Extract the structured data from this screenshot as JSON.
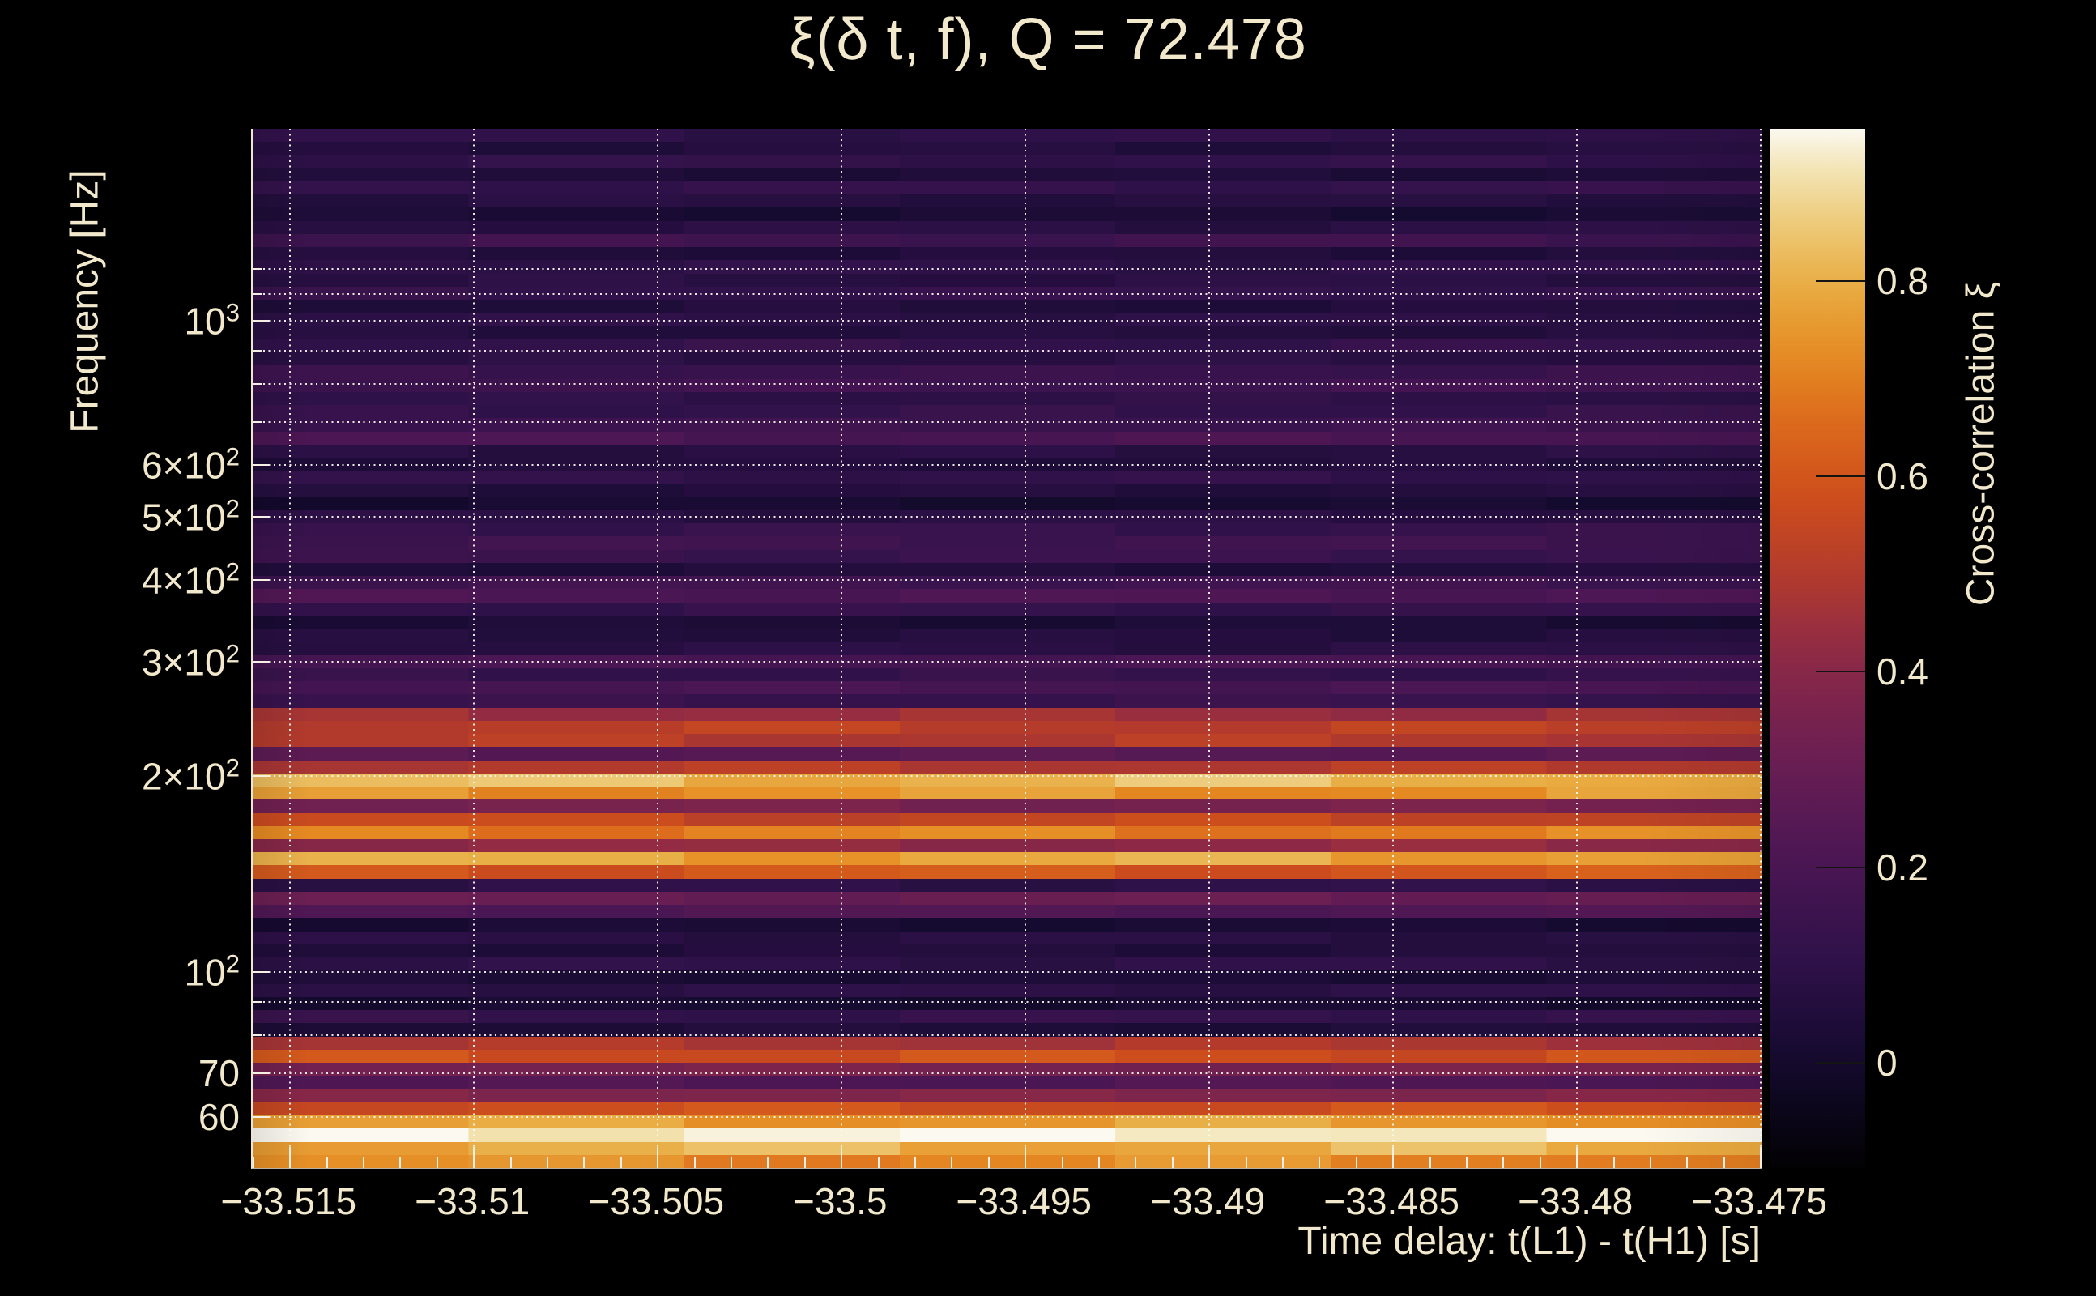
{
  "title": "ξ(δ t, f), Q = 72.478",
  "x_axis": {
    "title": "Time delay: t(L1) - t(H1) [s]",
    "tick_labels": [
      "−33.515",
      "−33.51",
      "−33.505",
      "−33.5",
      "−33.495",
      "−33.49",
      "−33.485",
      "−33.48",
      "−33.475"
    ]
  },
  "y_axis": {
    "title": "Frequency [Hz]",
    "tick_labels": [
      "10³",
      "6×10²",
      "5×10²",
      "4×10²",
      "3×10²",
      "2×10²",
      "10²",
      "70",
      "60"
    ]
  },
  "colorbar": {
    "title": "Cross-correlation ξ",
    "tick_labels": [
      "0.8",
      "0.6",
      "0.4",
      "0.2",
      "0"
    ]
  },
  "colors": {
    "background": "#000000",
    "text": "#f2e8cc",
    "grid": "#fdf9f0",
    "axis_line": "#ece5d2",
    "colorbar_tick": "#141414"
  },
  "chart_data": {
    "type": "heatmap",
    "title": "ξ(δ t, f), Q = 72.478",
    "q_value": 72.478,
    "xlabel": "Time delay: t(L1) - t(H1) [s]",
    "ylabel": "Frequency [Hz]",
    "zlabel": "Cross-correlation ξ",
    "x_range": [
      -33.51602,
      -33.47496
    ],
    "x_ticks": [
      -33.515,
      -33.51,
      -33.505,
      -33.5,
      -33.495,
      -33.49,
      -33.485,
      -33.48,
      -33.475
    ],
    "x_minor_step": 0.001,
    "y_scale": "log",
    "f_range": [
      50.1,
      1970
    ],
    "f_ticks": [
      {
        "f": 1000,
        "pre": "10",
        "sup": "3"
      },
      {
        "f": 600,
        "pre": "6×10",
        "sup": "2"
      },
      {
        "f": 500,
        "pre": "5×10",
        "sup": "2"
      },
      {
        "f": 400,
        "pre": "4×10",
        "sup": "2"
      },
      {
        "f": 300,
        "pre": "3×10",
        "sup": "2"
      },
      {
        "f": 200,
        "pre": "2×10",
        "sup": "2"
      },
      {
        "f": 100,
        "pre": "10",
        "sup": "2"
      },
      {
        "f": 70,
        "pre": "70",
        "sup": ""
      },
      {
        "f": 60,
        "pre": "60",
        "sup": ""
      }
    ],
    "grid_freqs": [
      1200,
      1100,
      1000,
      900,
      800,
      700,
      600,
      500,
      400,
      300,
      200,
      100,
      90,
      80,
      70,
      60
    ],
    "palette_range": [
      -0.108,
      0.956
    ],
    "palette_ticks": [
      {
        "v": 0.8,
        "label": "0.8"
      },
      {
        "v": 0.6,
        "label": "0.6"
      },
      {
        "v": 0.4,
        "label": "0.4"
      },
      {
        "v": 0.2,
        "label": "0.2"
      },
      {
        "v": 0.0,
        "label": "0"
      }
    ],
    "palette_stops": [
      [
        0.0,
        "#020103"
      ],
      [
        0.1,
        "#140a2e"
      ],
      [
        0.2,
        "#2f1149"
      ],
      [
        0.3,
        "#4c1654"
      ],
      [
        0.4,
        "#6c1f52"
      ],
      [
        0.5,
        "#8f2a45"
      ],
      [
        0.57,
        "#b23a2c"
      ],
      [
        0.64,
        "#cc4c1d"
      ],
      [
        0.71,
        "#db661c"
      ],
      [
        0.78,
        "#e58a22"
      ],
      [
        0.85,
        "#e9ad43"
      ],
      [
        0.91,
        "#edcb79"
      ],
      [
        0.96,
        "#f3e4b4"
      ],
      [
        1.0,
        "#fbf9f0"
      ]
    ],
    "rows_note": "cross-correlation value per Q-transform frequency row, listed top (1970 Hz) to bottom (50 Hz), uniform in log-frequency",
    "rows": [
      0.1,
      0.06,
      0.11,
      0.04,
      0.12,
      0.07,
      0.02,
      0.08,
      0.16,
      0.05,
      0.1,
      0.08,
      0.12,
      0.05,
      0.09,
      0.06,
      0.12,
      0.08,
      0.14,
      0.16,
      0.1,
      0.12,
      0.15,
      0.2,
      0.08,
      0.05,
      0.11,
      0.06,
      0.01,
      0.08,
      0.13,
      0.16,
      0.14,
      0.05,
      0.16,
      0.21,
      0.12,
      0.03,
      0.06,
      0.08,
      0.19,
      0.12,
      0.19,
      0.14,
      0.45,
      0.52,
      0.5,
      0.25,
      0.5,
      0.82,
      0.74,
      0.35,
      0.55,
      0.7,
      0.42,
      0.78,
      0.6,
      0.1,
      0.3,
      0.22,
      0.02,
      0.08,
      0.05,
      0.1,
      0.03,
      0.09,
      0.01,
      0.12,
      0.04,
      0.48,
      0.58,
      0.35,
      0.22,
      0.38,
      0.58,
      0.76,
      0.95,
      0.8,
      0.72
    ]
  }
}
